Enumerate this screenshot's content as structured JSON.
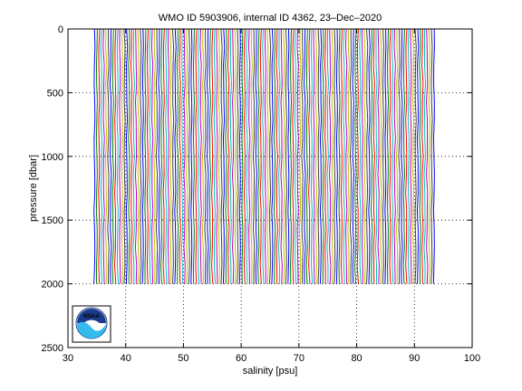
{
  "chart_data": {
    "type": "line",
    "title": "WMO ID 5903906, internal ID 4362, 23–Dec–2020",
    "xlabel": "salinity [psu]",
    "ylabel": "pressure [dbar]",
    "xlim": [
      30,
      100
    ],
    "ylim": [
      2500,
      0
    ],
    "y_reversed": true,
    "xticks": [
      30,
      40,
      50,
      60,
      70,
      80,
      90,
      100
    ],
    "xtick_labels": [
      "30",
      "40",
      "50",
      "60",
      "70",
      "80",
      "90",
      "100"
    ],
    "yticks": [
      0,
      500,
      1000,
      1500,
      2000,
      2500
    ],
    "ytick_labels": [
      "0",
      "500",
      "1000",
      "1500",
      "2000",
      "2500"
    ],
    "grid": true,
    "grid_style": "dotted",
    "profiles": {
      "description_note": "Many salinity profiles offset by a constant step, drawn as near-vertical colored lines from the surface to 2000 dbar",
      "first_offset_salinity": 34.6,
      "last_offset_salinity": 93.3,
      "step_salinity": 0.4,
      "pressure_range": [
        0,
        2000
      ],
      "colors": [
        "#0000ff",
        "#008000",
        "#ff0000",
        "#00bfbf",
        "#bf00bf",
        "#bfbf00",
        "#404040"
      ]
    }
  },
  "logo": {
    "name": "noaa-logo",
    "text": "NOAA",
    "colors": {
      "dark": "#1a3a8c",
      "light": "#33bbee",
      "white": "#ffffff"
    }
  }
}
